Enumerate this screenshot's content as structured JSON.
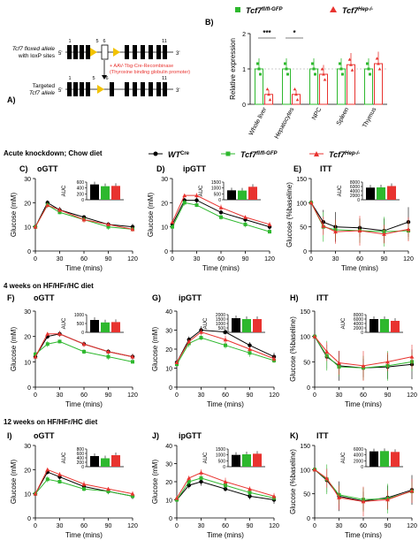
{
  "panelA": {
    "label": "A)",
    "floxed_line1": "Tcf7 floxed allele",
    "floxed_line2": "with loxP sites",
    "targeted_line1": "Targeted",
    "targeted_line2": "Tcf7 allele",
    "exon_labels_top": [
      "1",
      "5",
      "6",
      "11"
    ],
    "exon_labels_bottom": [
      "1",
      "5",
      "6",
      "11"
    ],
    "five_prime": "5'",
    "three_prime": "3'",
    "arrow_line1": "+ AAV-Tbg-Cre-Recombinase",
    "arrow_line2": "(Thyroxine binding globulin promoter)",
    "red_color": "#e8332f",
    "loxp_color": "#f2c200"
  },
  "panelB": {
    "label": "B)",
    "legend1": "Tcf7",
    "legend1_sup": "fl/fl-GFP",
    "legend2": "Tcf7",
    "legend2_sup": "Hep-/-",
    "sig1": "***",
    "sig2": "*"
  },
  "section1": "Acute knockdown; Chow diet",
  "section2": "4 weeks on HF/HFr/HC diet",
  "section3": "12 weeks on HF/HFr/HC diet",
  "legend": {
    "wt": "WT",
    "wt_sup": "Cre",
    "fl": "Tcf7",
    "fl_sup": "fl/fl-GFP",
    "hep": "Tcf7",
    "hep_sup": "Hep-/-"
  },
  "colors": {
    "wt": "#000000",
    "fl": "#2eb82e",
    "hep": "#e8332f"
  },
  "chart_data": [
    {
      "id": "B",
      "type": "bar",
      "ylabel": "Relative expression",
      "categories": [
        "Whole liver",
        "Hepatocytes",
        "NPC",
        "Spleen",
        "Thymus"
      ],
      "ylim": [
        0,
        2
      ],
      "yticks": [
        "0",
        "1",
        "2"
      ],
      "series": [
        {
          "name": "Tcf7 fl/fl-GFP",
          "values": [
            1.0,
            1.0,
            1.0,
            1.0,
            1.0
          ]
        },
        {
          "name": "Tcf7 Hep-/-",
          "values": [
            0.28,
            0.28,
            0.85,
            1.12,
            1.15
          ]
        }
      ]
    },
    {
      "id": "C",
      "type": "line",
      "title": "oGTT",
      "label": "C)",
      "xlabel": "Time (mins)",
      "ylabel": "Glucose (mM)",
      "x": [
        0,
        15,
        30,
        60,
        90,
        120
      ],
      "xlim": [
        0,
        120
      ],
      "ylim": [
        0,
        30
      ],
      "xticks": [
        "0",
        "30",
        "60",
        "90",
        "120"
      ],
      "yticks": [
        "0",
        "10",
        "20",
        "30"
      ],
      "series": [
        {
          "name": "WT Cre",
          "values": [
            10,
            20,
            17,
            14,
            11,
            10
          ]
        },
        {
          "name": "Tcf7 fl/fl-GFP",
          "values": [
            10,
            19,
            16,
            13,
            10,
            9
          ]
        },
        {
          "name": "Tcf7 Hep-/-",
          "values": [
            10,
            19,
            17,
            13,
            11,
            9
          ]
        }
      ],
      "auc": {
        "ylabel": "AUC",
        "ylim": [
          0,
          600
        ],
        "yticks": [
          "0",
          "200",
          "400",
          "600"
        ],
        "values": [
          520,
          460,
          470
        ]
      }
    },
    {
      "id": "D",
      "type": "line",
      "title": "ipGTT",
      "label": "D)",
      "xlabel": "Time (mins)",
      "ylabel": "Glucose (mM)",
      "x": [
        0,
        15,
        30,
        60,
        90,
        120
      ],
      "xlim": [
        0,
        120
      ],
      "ylim": [
        0,
        30
      ],
      "xticks": [
        "0",
        "30",
        "60",
        "90",
        "120"
      ],
      "yticks": [
        "0",
        "10",
        "20",
        "30"
      ],
      "series": [
        {
          "name": "WT Cre",
          "values": [
            11,
            21,
            21,
            16,
            13,
            10
          ]
        },
        {
          "name": "Tcf7 fl/fl-GFP",
          "values": [
            10,
            20,
            19,
            14,
            11,
            8
          ]
        },
        {
          "name": "Tcf7 Hep-/-",
          "values": [
            12,
            23,
            23,
            18,
            14,
            11
          ]
        }
      ],
      "auc": {
        "ylabel": "AUC",
        "ylim": [
          0,
          1500
        ],
        "yticks": [
          "0",
          "500",
          "1000",
          "1500"
        ],
        "values": [
          800,
          780,
          1100
        ]
      }
    },
    {
      "id": "E",
      "type": "line",
      "title": "ITT",
      "label": "E)",
      "xlabel": "Time (mins)",
      "ylabel": "Glucose (%baseline)",
      "x": [
        0,
        15,
        30,
        60,
        90,
        120
      ],
      "xlim": [
        0,
        120
      ],
      "ylim": [
        0,
        150
      ],
      "xticks": [
        "0",
        "30",
        "60",
        "90",
        "120"
      ],
      "yticks": [
        "0",
        "50",
        "100",
        "150"
      ],
      "series": [
        {
          "name": "WT Cre",
          "values": [
            100,
            60,
            50,
            48,
            42,
            60
          ]
        },
        {
          "name": "Tcf7 fl/fl-GFP",
          "values": [
            100,
            50,
            44,
            42,
            40,
            42
          ]
        },
        {
          "name": "Tcf7 Hep-/-",
          "values": [
            100,
            52,
            40,
            42,
            35,
            45
          ]
        }
      ],
      "auc": {
        "ylabel": "AUC",
        "ylim": [
          0,
          8000
        ],
        "yticks": [
          "0",
          "2000",
          "4000",
          "6000",
          "8000"
        ],
        "values": [
          5500,
          5600,
          6200
        ]
      }
    },
    {
      "id": "F",
      "type": "line",
      "title": "oGTT",
      "label": "F)",
      "xlabel": "Time (mins)",
      "ylabel": "Glucose (mM)",
      "x": [
        0,
        15,
        30,
        60,
        90,
        120
      ],
      "xlim": [
        0,
        120
      ],
      "ylim": [
        0,
        30
      ],
      "xticks": [
        "0",
        "30",
        "60",
        "90",
        "120"
      ],
      "yticks": [
        "0",
        "10",
        "20",
        "30"
      ],
      "series": [
        {
          "name": "WT Cre",
          "values": [
            12,
            20,
            21,
            17,
            14,
            12
          ]
        },
        {
          "name": "Tcf7 fl/fl-GFP",
          "values": [
            13,
            17,
            18,
            14,
            12,
            10
          ]
        },
        {
          "name": "Tcf7 Hep-/-",
          "values": [
            12,
            21,
            21,
            17,
            14,
            12
          ]
        }
      ],
      "auc": {
        "ylabel": "AUC",
        "ylim": [
          0,
          1000
        ],
        "yticks": [
          "0",
          "500",
          "1000"
        ],
        "values": [
          700,
          560,
          580
        ]
      }
    },
    {
      "id": "G",
      "type": "line",
      "title": "ipGTT",
      "label": "G)",
      "xlabel": "Time (mins)",
      "ylabel": "Glucose (mM)",
      "x": [
        0,
        15,
        30,
        60,
        90,
        120
      ],
      "xlim": [
        0,
        120
      ],
      "ylim": [
        0,
        40
      ],
      "xticks": [
        "0",
        "30",
        "60",
        "90",
        "120"
      ],
      "yticks": [
        "0",
        "10",
        "20",
        "30",
        "40"
      ],
      "series": [
        {
          "name": "WT Cre",
          "values": [
            13,
            25,
            30,
            29,
            22,
            16
          ]
        },
        {
          "name": "Tcf7 fl/fl-GFP",
          "values": [
            12,
            23,
            26,
            22,
            18,
            14
          ]
        },
        {
          "name": "Tcf7 Hep-/-",
          "values": [
            13,
            24,
            29,
            25,
            20,
            15
          ]
        }
      ],
      "auc": {
        "ylabel": "AUC",
        "ylim": [
          0,
          2000
        ],
        "yticks": [
          "0",
          "500",
          "1000",
          "1500",
          "2000"
        ],
        "values": [
          1600,
          1500,
          1500
        ]
      }
    },
    {
      "id": "H",
      "type": "line",
      "title": "ITT",
      "label": "H)",
      "xlabel": "Time (mins)",
      "ylabel": "Glucose (%baseline)",
      "x": [
        0,
        15,
        30,
        60,
        90,
        120
      ],
      "xlim": [
        0,
        120
      ],
      "ylim": [
        0,
        150
      ],
      "xticks": [
        "0",
        "30",
        "60",
        "90",
        "120"
      ],
      "yticks": [
        "0",
        "50",
        "100",
        "150"
      ],
      "series": [
        {
          "name": "WT Cre",
          "values": [
            100,
            60,
            42,
            38,
            40,
            45
          ]
        },
        {
          "name": "Tcf7 fl/fl-GFP",
          "values": [
            100,
            62,
            40,
            38,
            42,
            50
          ]
        },
        {
          "name": "Tcf7 Hep-/-",
          "values": [
            100,
            70,
            48,
            42,
            50,
            60
          ]
        }
      ],
      "auc": {
        "ylabel": "AUC",
        "ylim": [
          0,
          8000
        ],
        "yticks": [
          "0",
          "2000",
          "4000",
          "6000",
          "8000"
        ],
        "values": [
          6000,
          6000,
          5200
        ]
      }
    },
    {
      "id": "I",
      "type": "line",
      "title": "oGTT",
      "label": "I)",
      "xlabel": "Time (mins)",
      "ylabel": "Glucose (mM)",
      "x": [
        0,
        15,
        30,
        60,
        90,
        120
      ],
      "xlim": [
        0,
        120
      ],
      "ylim": [
        0,
        30
      ],
      "xticks": [
        "0",
        "30",
        "60",
        "90",
        "120"
      ],
      "yticks": [
        "0",
        "10",
        "20",
        "30"
      ],
      "series": [
        {
          "name": "WT Cre",
          "values": [
            10,
            19,
            17,
            13,
            11,
            9
          ]
        },
        {
          "name": "Tcf7 fl/fl-GFP",
          "values": [
            10,
            16,
            15,
            12,
            11,
            9
          ]
        },
        {
          "name": "Tcf7 Hep-/-",
          "values": [
            10,
            20,
            18,
            14,
            12,
            10
          ]
        }
      ],
      "auc": {
        "ylabel": "AUC",
        "ylim": [
          0,
          800
        ],
        "yticks": [
          "0",
          "200",
          "400",
          "600",
          "800"
        ],
        "values": [
          480,
          380,
          520
        ]
      }
    },
    {
      "id": "J",
      "type": "line",
      "title": "ipGTT",
      "label": "J)",
      "xlabel": "Time (mins)",
      "ylabel": "Glucose (mM)",
      "x": [
        0,
        15,
        30,
        60,
        90,
        120
      ],
      "xlim": [
        0,
        120
      ],
      "ylim": [
        0,
        40
      ],
      "xticks": [
        "0",
        "30",
        "60",
        "90",
        "120"
      ],
      "yticks": [
        "0",
        "10",
        "20",
        "30",
        "40"
      ],
      "series": [
        {
          "name": "WT Cre",
          "values": [
            10,
            18,
            20,
            16,
            12,
            10
          ]
        },
        {
          "name": "Tcf7 fl/fl-GFP",
          "values": [
            10,
            20,
            22,
            18,
            14,
            11
          ]
        },
        {
          "name": "Tcf7 Hep-/-",
          "values": [
            11,
            22,
            25,
            20,
            16,
            12
          ]
        }
      ],
      "auc": {
        "ylabel": "AUC",
        "ylim": [
          0,
          1500
        ],
        "yticks": [
          "0",
          "500",
          "1000",
          "1500"
        ],
        "values": [
          1000,
          1050,
          1100
        ]
      }
    },
    {
      "id": "K",
      "type": "line",
      "title": "ITT",
      "label": "K)",
      "xlabel": "Time (mins)",
      "ylabel": "Glucose (%baseline)",
      "x": [
        0,
        15,
        30,
        60,
        90,
        120
      ],
      "xlim": [
        0,
        120
      ],
      "ylim": [
        0,
        150
      ],
      "xticks": [
        "0",
        "30",
        "60",
        "90",
        "120"
      ],
      "yticks": [
        "0",
        "50",
        "100",
        "150"
      ],
      "series": [
        {
          "name": "WT Cre",
          "values": [
            100,
            78,
            45,
            35,
            42,
            58
          ]
        },
        {
          "name": "Tcf7 fl/fl-GFP",
          "values": [
            100,
            80,
            48,
            38,
            40,
            55
          ]
        },
        {
          "name": "Tcf7 Hep-/-",
          "values": [
            100,
            82,
            42,
            34,
            38,
            56
          ]
        }
      ],
      "auc": {
        "ylabel": "AUC",
        "ylim": [
          0,
          6000
        ],
        "yticks": [
          "0",
          "2000",
          "4000",
          "6000"
        ],
        "values": [
          5200,
          5300,
          5000
        ]
      }
    }
  ]
}
